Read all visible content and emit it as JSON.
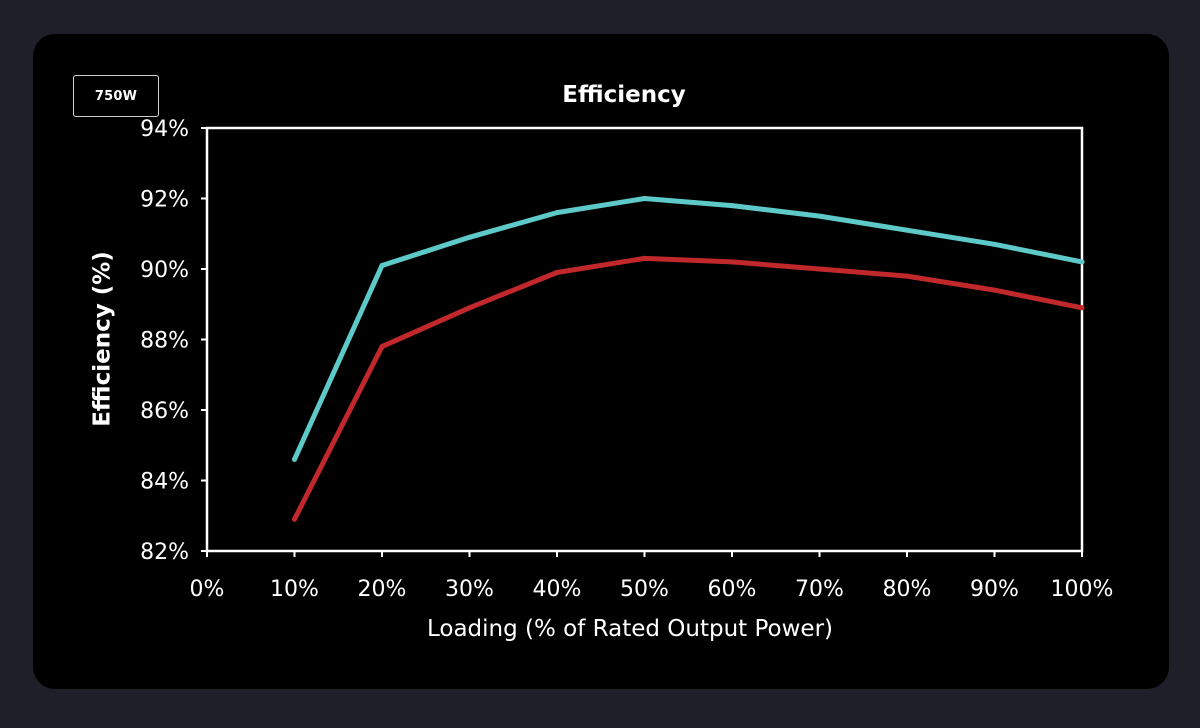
{
  "badge": {
    "label": "750W"
  },
  "chart_data": {
    "type": "line",
    "title": "Efficiency",
    "xlabel": "Loading (% of Rated Output Power)",
    "ylabel": "Efficiency (%)",
    "x_ticks": [
      "0%",
      "10%",
      "20%",
      "30%",
      "40%",
      "50%",
      "60%",
      "70%",
      "80%",
      "90%",
      "100%"
    ],
    "y_ticks": [
      "82%",
      "84%",
      "86%",
      "88%",
      "90%",
      "92%",
      "94%"
    ],
    "xlim": [
      0,
      100
    ],
    "ylim": [
      82,
      94
    ],
    "grid": false,
    "x": [
      10,
      20,
      30,
      40,
      50,
      60,
      70,
      80,
      90,
      100
    ],
    "series": [
      {
        "values": [
          84.6,
          90.1,
          90.9,
          91.6,
          92.0,
          91.8,
          91.5,
          91.1,
          90.7,
          90.2
        ],
        "color": "#5ec9c9"
      },
      {
        "values": [
          82.9,
          87.8,
          88.9,
          89.9,
          90.3,
          90.2,
          90.0,
          89.8,
          89.4,
          88.9
        ],
        "color": "#c0282c"
      }
    ]
  }
}
